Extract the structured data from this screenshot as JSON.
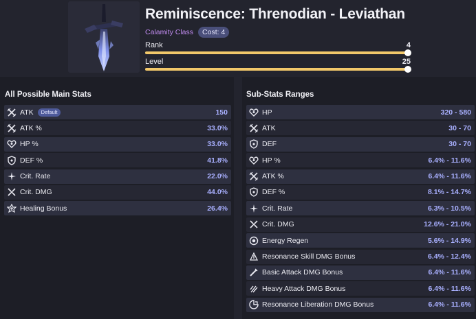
{
  "header": {
    "title": "Reminiscence: Threnodian - Leviathan",
    "class_label": "Calamity Class",
    "cost_label": "Cost: 4",
    "rank": {
      "label": "Rank",
      "value": "4",
      "fraction": 1.0
    },
    "level": {
      "label": "Level",
      "value": "25",
      "fraction": 1.0
    }
  },
  "main_stats": {
    "title": "All Possible Main Stats",
    "default_badge": "Default",
    "rows": [
      {
        "icon": "atk-icon",
        "label": "ATK",
        "value": "150"
      },
      {
        "icon": "atk-icon",
        "label": "ATK %",
        "value": "33.0%"
      },
      {
        "icon": "hp-icon",
        "label": "HP %",
        "value": "33.0%"
      },
      {
        "icon": "def-icon",
        "label": "DEF %",
        "value": "41.8%"
      },
      {
        "icon": "crit-rate-icon",
        "label": "Crit. Rate",
        "value": "22.0%"
      },
      {
        "icon": "crit-dmg-icon",
        "label": "Crit. DMG",
        "value": "44.0%"
      },
      {
        "icon": "healing-icon",
        "label": "Healing Bonus",
        "value": "26.4%"
      }
    ]
  },
  "sub_stats": {
    "title": "Sub-Stats Ranges",
    "rows": [
      {
        "icon": "hp-icon",
        "label": "HP",
        "value": "320 - 580"
      },
      {
        "icon": "atk-icon",
        "label": "ATK",
        "value": "30 - 70"
      },
      {
        "icon": "def-icon",
        "label": "DEF",
        "value": "30 - 70"
      },
      {
        "icon": "hp-icon",
        "label": "HP %",
        "value": "6.4% - 11.6%"
      },
      {
        "icon": "atk-icon",
        "label": "ATK %",
        "value": "6.4% - 11.6%"
      },
      {
        "icon": "def-icon",
        "label": "DEF %",
        "value": "8.1% - 14.7%"
      },
      {
        "icon": "crit-rate-icon",
        "label": "Crit. Rate",
        "value": "6.3% - 10.5%"
      },
      {
        "icon": "crit-dmg-icon",
        "label": "Crit. DMG",
        "value": "12.6% - 21.0%"
      },
      {
        "icon": "energy-regen-icon",
        "label": "Energy Regen",
        "value": "5.6% - 14.9%"
      },
      {
        "icon": "resonance-skill-icon",
        "label": "Resonance Skill DMG Bonus",
        "value": "6.4% - 12.4%"
      },
      {
        "icon": "basic-attack-icon",
        "label": "Basic Attack DMG Bonus",
        "value": "6.4% - 11.6%"
      },
      {
        "icon": "heavy-attack-icon",
        "label": "Heavy Attack DMG Bonus",
        "value": "6.4% - 11.6%"
      },
      {
        "icon": "liberation-icon",
        "label": "Resonance Liberation DMG Bonus",
        "value": "6.4% - 11.6%"
      }
    ]
  },
  "colors": {
    "accent_value": "#a9b0ff",
    "slider_fill": "#f2c86a",
    "class_label": "#c18bf0"
  }
}
